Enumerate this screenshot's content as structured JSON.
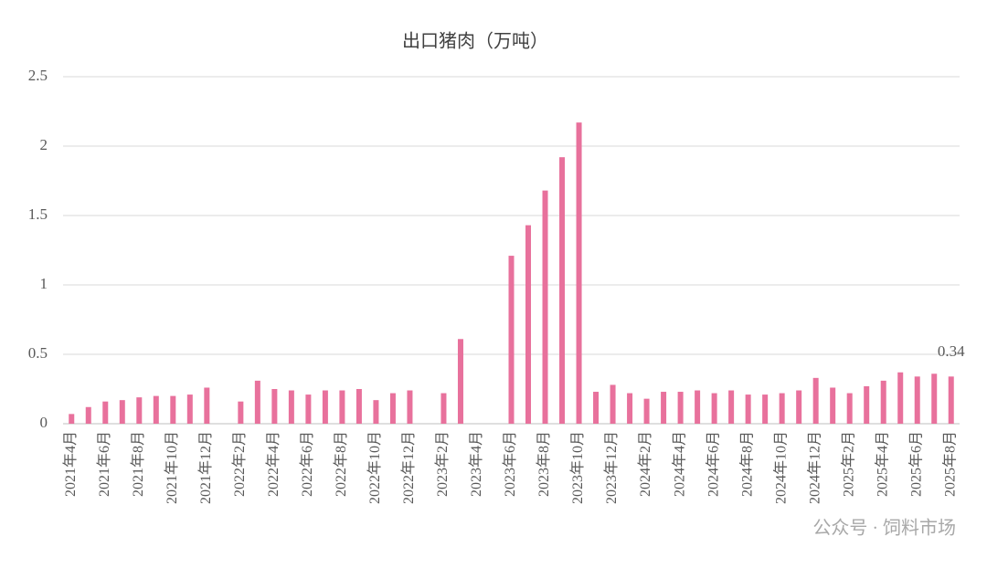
{
  "chart_data": {
    "type": "bar",
    "title": "出口猪肉（万吨）",
    "categories": [
      "2021年4月",
      null,
      "2021年6月",
      null,
      "2021年8月",
      null,
      "2021年10月",
      null,
      "2021年12月",
      null,
      "2022年2月",
      null,
      "2022年4月",
      null,
      "2022年6月",
      null,
      "2022年8月",
      null,
      "2022年10月",
      null,
      "2022年12月",
      null,
      "2023年2月",
      null,
      "2023年4月",
      null,
      "2023年6月",
      null,
      "2023年8月",
      null,
      "2023年10月",
      null,
      "2023年12月",
      null,
      "2024年2月",
      null,
      "2024年4月",
      null,
      "2024年6月",
      null,
      "2024年8月",
      null,
      "2024年10月",
      null,
      "2024年12月",
      null,
      "2025年2月",
      null,
      "2025年4月",
      null,
      "2025年6月",
      null,
      "2025年8月"
    ],
    "values": [
      0.07,
      0.12,
      0.16,
      0.17,
      0.19,
      0.2,
      0.2,
      0.21,
      0.26,
      null,
      0.16,
      0.31,
      0.25,
      0.24,
      0.21,
      0.24,
      0.24,
      0.25,
      0.17,
      0.22,
      0.24,
      null,
      0.22,
      0.61,
      null,
      null,
      1.21,
      1.43,
      1.68,
      1.92,
      2.17,
      0.23,
      0.28,
      0.22,
      0.18,
      0.23,
      0.23,
      0.24,
      0.22,
      0.24,
      0.21,
      0.21,
      0.22,
      0.24,
      0.33,
      0.26,
      0.22,
      0.27,
      0.31,
      0.37,
      0.34,
      0.36,
      0.34
    ],
    "value_labels": [
      null,
      null,
      null,
      null,
      null,
      null,
      null,
      null,
      null,
      null,
      null,
      null,
      null,
      null,
      null,
      null,
      null,
      null,
      null,
      null,
      null,
      null,
      null,
      null,
      null,
      null,
      null,
      null,
      null,
      null,
      null,
      null,
      null,
      null,
      null,
      null,
      null,
      null,
      null,
      null,
      null,
      null,
      null,
      null,
      null,
      null,
      null,
      null,
      null,
      null,
      null,
      null,
      "0.34"
    ],
    "color": "#e8719c",
    "ylim": [
      0,
      2.5
    ],
    "yticks": [
      0,
      0.5,
      1,
      1.5,
      2,
      2.5
    ],
    "grid": true
  },
  "watermark": "公众号 · 饲料市场"
}
